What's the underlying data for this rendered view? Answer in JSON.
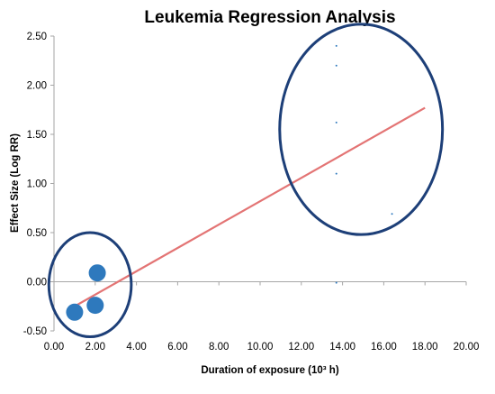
{
  "chart_data": {
    "type": "scatter",
    "title": "Leukemia Regression Analysis",
    "xlabel": "Duration of exposure (10³ h)",
    "ylabel": "Effect Size (Log RR)",
    "xlim": [
      0,
      20
    ],
    "ylim": [
      -0.5,
      2.5
    ],
    "x_ticks": [
      "0.00",
      "2.00",
      "4.00",
      "6.00",
      "8.00",
      "10.00",
      "12.00",
      "14.00",
      "16.00",
      "18.00",
      "20.00"
    ],
    "y_ticks": [
      "-0.50",
      "0.00",
      "0.50",
      "1.00",
      "1.50",
      "2.00",
      "2.50"
    ],
    "grid": false,
    "legend": "none",
    "series": [
      {
        "marker": "large-circle",
        "color": "#2e79bd",
        "points": [
          {
            "x": 1.0,
            "y": -0.31
          },
          {
            "x": 2.0,
            "y": -0.24
          },
          {
            "x": 2.1,
            "y": 0.09
          }
        ]
      },
      {
        "marker": "tiny-dot",
        "color": "#2e79bd",
        "points": [
          {
            "x": 13.7,
            "y": 2.4
          },
          {
            "x": 13.7,
            "y": 2.2
          },
          {
            "x": 13.7,
            "y": 1.62
          },
          {
            "x": 13.7,
            "y": 1.1
          },
          {
            "x": 16.4,
            "y": 0.69
          },
          {
            "x": 13.7,
            "y": -0.01
          }
        ]
      }
    ],
    "regression_line": {
      "color": "#e37474",
      "from": {
        "x": 1.0,
        "y": -0.25
      },
      "to": {
        "x": 18.0,
        "y": 1.77
      }
    },
    "annotations": [
      {
        "shape": "ellipse",
        "color": "#1d3f78",
        "center": {
          "x": 1.75,
          "y": -0.03
        },
        "rx": 2.0,
        "ry": 0.53
      },
      {
        "shape": "ellipse",
        "color": "#1d3f78",
        "center": {
          "x": 14.9,
          "y": 1.55
        },
        "rx": 3.95,
        "ry": 1.07
      }
    ]
  }
}
